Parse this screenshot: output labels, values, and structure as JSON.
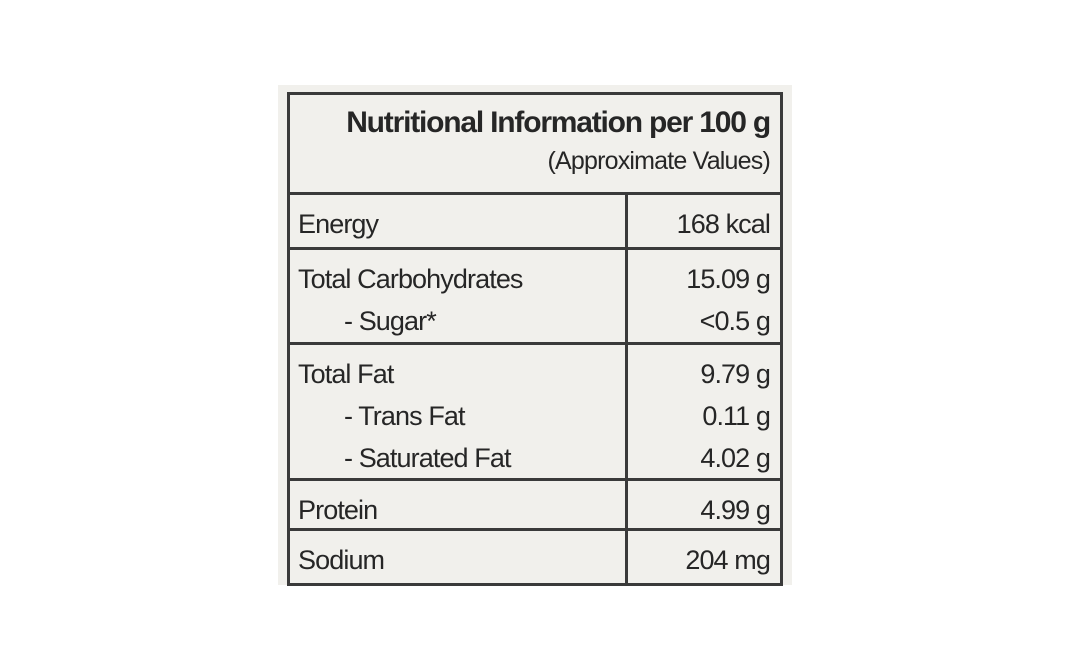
{
  "header": {
    "title": "Nutritional Information per 100 g",
    "subtitle": "(Approximate Values)"
  },
  "table": {
    "rows": [
      [
        [
          "Energy",
          "168 kcal"
        ]
      ],
      [
        [
          "Total Carbohydrates",
          "15.09 g"
        ],
        [
          "- Sugar*",
          "<0.5 g"
        ]
      ],
      [
        [
          "Total Fat",
          "9.79 g"
        ],
        [
          "- Trans Fat",
          "0.11 g"
        ],
        [
          "- Saturated Fat",
          "4.02 g"
        ]
      ],
      [
        [
          "Protein",
          "4.99 g"
        ]
      ],
      [
        [
          "Sodium",
          "204 mg"
        ]
      ]
    ]
  }
}
